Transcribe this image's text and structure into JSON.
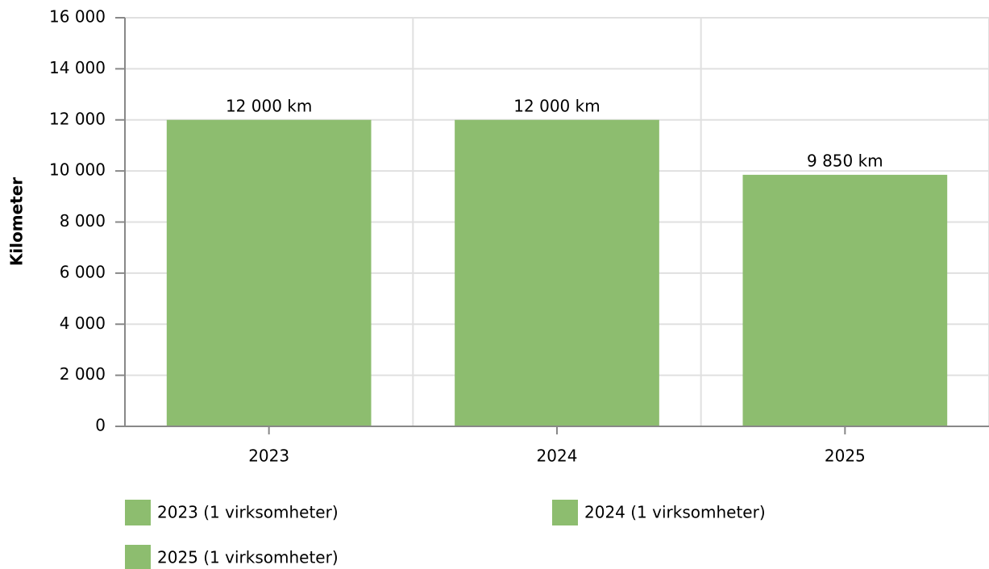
{
  "chart_data": {
    "type": "bar",
    "y_label": "Kilometer",
    "categories": [
      "2023",
      "2024",
      "2025"
    ],
    "series": [
      {
        "name": "2023 (1 virksomheter)",
        "color": "#8dbd6f",
        "values": [
          12000,
          null,
          null
        ],
        "value_labels": [
          "12 000 km",
          null,
          null
        ]
      },
      {
        "name": "2024 (1 virksomheter)",
        "color": "#8dbd6f",
        "values": [
          null,
          12000,
          null
        ],
        "value_labels": [
          null,
          "12 000 km",
          null
        ]
      },
      {
        "name": "2025 (1 virksomheter)",
        "color": "#8dbd6f",
        "values": [
          null,
          null,
          9850
        ],
        "value_labels": [
          null,
          null,
          "9 850 km"
        ]
      }
    ],
    "ylim": [
      0,
      16000
    ],
    "yticks": [
      0,
      {
        "value": 2000,
        "label": "2 000"
      },
      {
        "value": 4000,
        "label": "4 000"
      },
      {
        "value": 6000,
        "label": "6 000"
      },
      {
        "value": 8000,
        "label": "8 000"
      },
      {
        "value": 10000,
        "label": "10 000"
      },
      {
        "value": 12000,
        "label": "12 000"
      },
      {
        "value": 14000,
        "label": "14 000"
      },
      {
        "value": 16000,
        "label": "16 000"
      }
    ],
    "grid": true
  }
}
